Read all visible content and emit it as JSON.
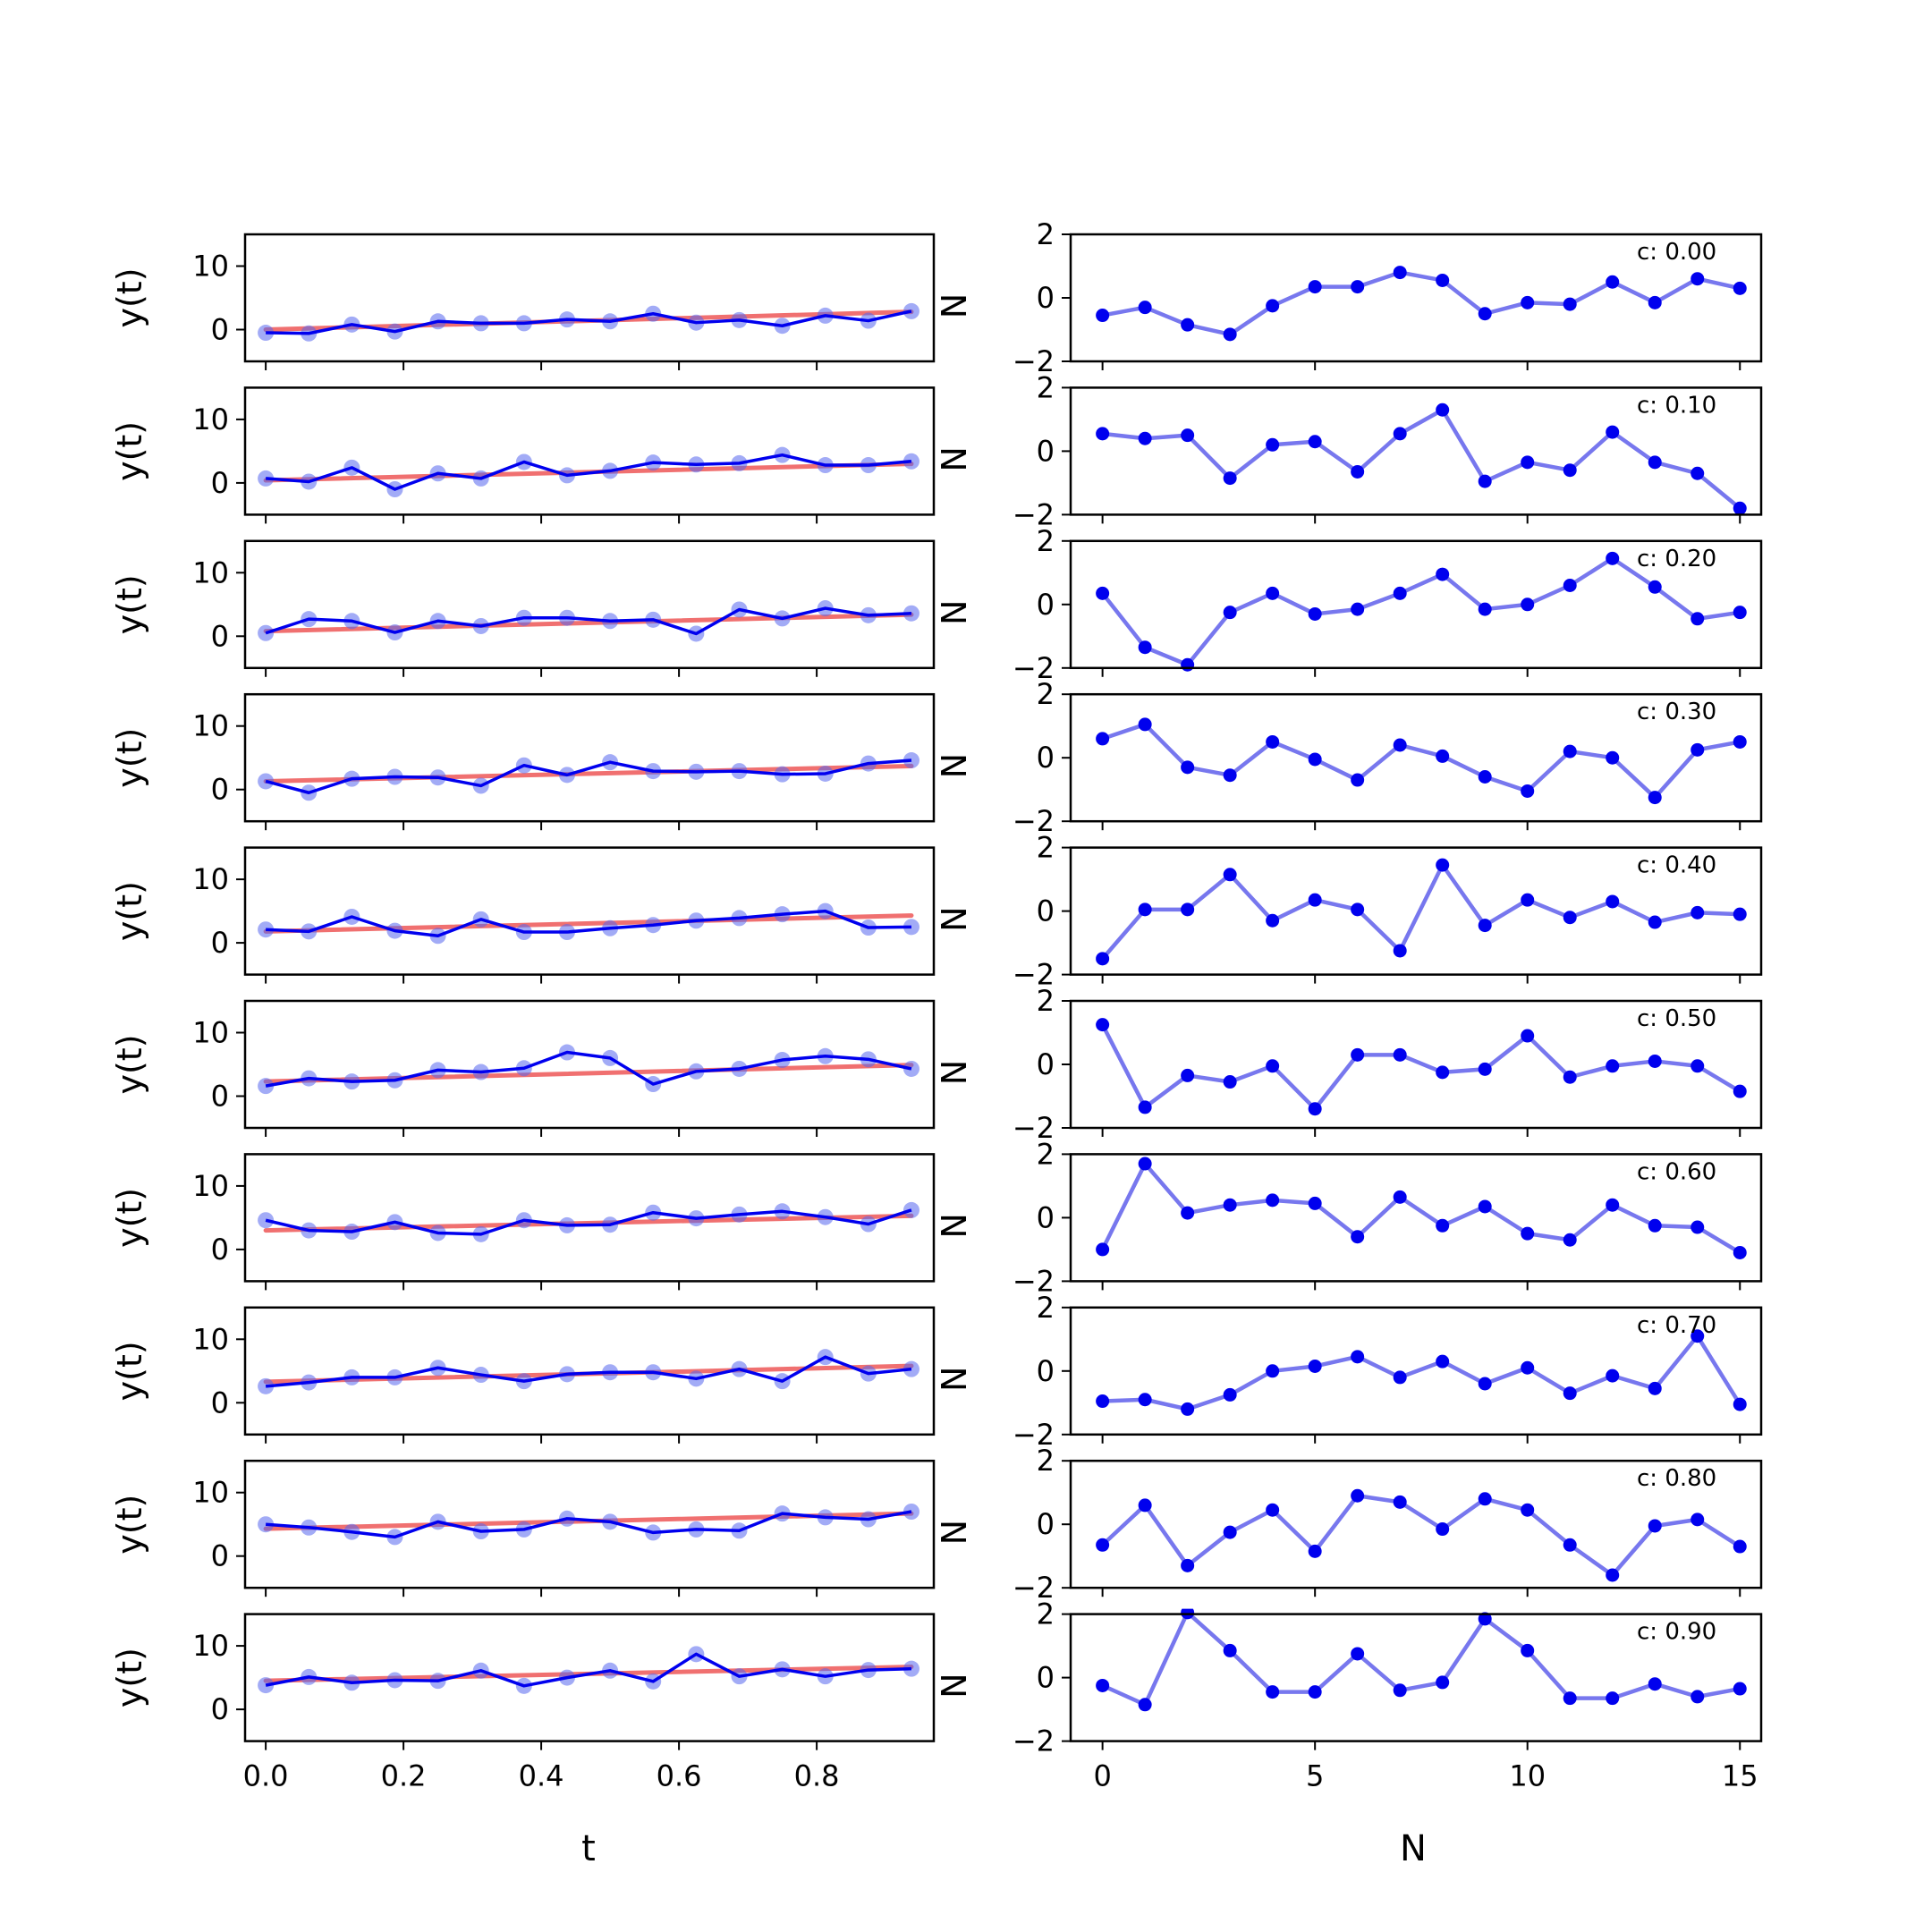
{
  "chart_data": [
    {
      "type": "line",
      "panel": "left",
      "description_axes": "10 stacked subplots sharing the x axis",
      "xlabel": "t",
      "ylabel": "y(t)",
      "xlim": [
        -0.03,
        0.97
      ],
      "ylim": [
        -5,
        15
      ],
      "xticks": [
        0.0,
        0.2,
        0.4,
        0.6,
        0.8
      ],
      "xtick_labels": [
        "0.0",
        "0.2",
        "0.4",
        "0.6",
        "0.8"
      ],
      "yticks": [
        0,
        10
      ],
      "ytick_labels": [
        "0",
        "10"
      ],
      "x": [
        0.0,
        0.0625,
        0.125,
        0.1875,
        0.25,
        0.3125,
        0.375,
        0.4375,
        0.5,
        0.5625,
        0.625,
        0.6875,
        0.75,
        0.8125,
        0.875,
        0.9375
      ],
      "colors": {
        "observed": "#0000ee",
        "markers": "#5566ee",
        "trend": "#f07070"
      },
      "subplots": [
        {
          "values": [
            -0.5,
            -0.6,
            0.8,
            -0.3,
            1.3,
            1.0,
            1.0,
            1.6,
            1.3,
            2.5,
            1.1,
            1.5,
            0.6,
            2.2,
            1.4,
            2.9
          ],
          "trend": [
            0.0,
            2.8
          ]
        },
        {
          "values": [
            0.7,
            0.2,
            2.4,
            -1.0,
            1.5,
            0.7,
            3.3,
            1.2,
            1.9,
            3.2,
            2.9,
            3.1,
            4.4,
            2.8,
            2.8,
            3.4
          ],
          "trend": [
            0.4,
            3.0
          ]
        },
        {
          "values": [
            0.5,
            2.7,
            2.4,
            0.6,
            2.4,
            1.6,
            2.9,
            2.9,
            2.4,
            2.6,
            0.4,
            4.2,
            2.8,
            4.4,
            3.3,
            3.6
          ],
          "trend": [
            0.8,
            3.4
          ]
        },
        {
          "values": [
            1.3,
            -0.5,
            1.7,
            2.0,
            1.9,
            0.6,
            3.8,
            2.3,
            4.3,
            2.9,
            2.8,
            2.9,
            2.4,
            2.5,
            4.1,
            4.6
          ],
          "trend": [
            1.3,
            3.7
          ]
        },
        {
          "values": [
            2.1,
            1.8,
            4.1,
            1.9,
            1.1,
            3.7,
            1.7,
            1.7,
            2.3,
            2.8,
            3.5,
            3.9,
            4.5,
            5.0,
            2.4,
            2.5
          ],
          "trend": [
            1.8,
            4.3
          ]
        },
        {
          "values": [
            1.6,
            2.8,
            2.3,
            2.5,
            4.1,
            3.8,
            4.4,
            6.9,
            6.0,
            1.9,
            3.9,
            4.3,
            5.7,
            6.3,
            5.8,
            4.3
          ],
          "trend": [
            2.3,
            4.9
          ]
        },
        {
          "values": [
            4.6,
            3.0,
            2.8,
            4.3,
            2.6,
            2.4,
            4.6,
            3.8,
            3.9,
            5.8,
            4.9,
            5.5,
            6.0,
            5.1,
            4.0,
            6.2
          ],
          "trend": [
            3.0,
            5.3
          ]
        },
        {
          "values": [
            2.6,
            3.2,
            4.0,
            4.0,
            5.5,
            4.4,
            3.4,
            4.5,
            4.8,
            4.8,
            3.8,
            5.3,
            3.4,
            7.2,
            4.6,
            5.3
          ],
          "trend": [
            3.3,
            5.8
          ]
        },
        {
          "values": [
            5.0,
            4.5,
            3.8,
            3.0,
            5.4,
            3.9,
            4.2,
            5.9,
            5.4,
            3.7,
            4.2,
            4.0,
            6.7,
            6.1,
            5.8,
            7.0
          ],
          "trend": [
            4.3,
            6.7
          ]
        },
        {
          "values": [
            3.8,
            5.1,
            4.2,
            4.6,
            4.5,
            6.1,
            3.7,
            5.0,
            6.1,
            4.4,
            8.7,
            5.2,
            6.3,
            5.2,
            6.2,
            6.4
          ],
          "trend": [
            4.5,
            6.7
          ]
        }
      ]
    },
    {
      "type": "line",
      "panel": "right",
      "xlabel": "N",
      "ylabel": "N",
      "xlim": [
        -0.75,
        15.5
      ],
      "ylim": [
        -2,
        2
      ],
      "xticks": [
        0,
        5,
        10,
        15
      ],
      "xtick_labels": [
        "0",
        "5",
        "10",
        "15"
      ],
      "yticks": [
        -2,
        0,
        2
      ],
      "ytick_labels": [
        "−2",
        "0",
        "2"
      ],
      "x": [
        0,
        1,
        2,
        3,
        4,
        5,
        6,
        7,
        8,
        9,
        10,
        11,
        12,
        13,
        14,
        15
      ],
      "colors": {
        "line": "#7777ee",
        "markers": "#0000ee"
      },
      "subplots": [
        {
          "label": "c: 0.00",
          "values": [
            -0.55,
            -0.3,
            -0.85,
            -1.15,
            -0.25,
            0.35,
            0.35,
            0.8,
            0.55,
            -0.5,
            -0.15,
            -0.2,
            0.5,
            -0.15,
            0.6,
            0.3
          ]
        },
        {
          "label": "c: 0.10",
          "values": [
            0.55,
            0.4,
            0.5,
            -0.85,
            0.2,
            0.3,
            -0.65,
            0.55,
            1.3,
            -0.95,
            -0.35,
            -0.6,
            0.6,
            -0.35,
            -0.7,
            -1.8
          ]
        },
        {
          "label": "c: 0.20",
          "values": [
            0.35,
            -1.35,
            -1.9,
            -0.25,
            0.35,
            -0.3,
            -0.15,
            0.35,
            0.95,
            -0.15,
            0.0,
            0.6,
            1.45,
            0.55,
            -0.45,
            -0.25
          ]
        },
        {
          "label": "c: 0.30",
          "values": [
            0.6,
            1.05,
            -0.3,
            -0.55,
            0.5,
            -0.05,
            -0.7,
            0.4,
            0.05,
            -0.6,
            -1.05,
            0.2,
            0.0,
            -1.25,
            0.25,
            0.5
          ]
        },
        {
          "label": "c: 0.40",
          "values": [
            -1.5,
            0.05,
            0.05,
            1.15,
            -0.3,
            0.35,
            0.05,
            -1.25,
            1.45,
            -0.45,
            0.35,
            -0.2,
            0.3,
            -0.35,
            -0.05,
            -0.1
          ]
        },
        {
          "label": "c: 0.50",
          "values": [
            1.25,
            -1.35,
            -0.35,
            -0.55,
            -0.05,
            -1.4,
            0.3,
            0.3,
            -0.25,
            -0.15,
            0.9,
            -0.4,
            -0.05,
            0.1,
            -0.05,
            -0.85
          ]
        },
        {
          "label": "c: 0.60",
          "values": [
            -1.0,
            1.7,
            0.15,
            0.4,
            0.55,
            0.45,
            -0.6,
            0.65,
            -0.25,
            0.35,
            -0.5,
            -0.7,
            0.4,
            -0.25,
            -0.3,
            -1.1
          ]
        },
        {
          "label": "c: 0.70",
          "values": [
            -0.95,
            -0.9,
            -1.2,
            -0.75,
            0.0,
            0.15,
            0.45,
            -0.2,
            0.3,
            -0.4,
            0.1,
            -0.7,
            -0.15,
            -0.55,
            1.1,
            -1.05
          ]
        },
        {
          "label": "c: 0.80",
          "values": [
            -0.65,
            0.6,
            -1.3,
            -0.25,
            0.45,
            -0.85,
            0.9,
            0.7,
            -0.15,
            0.8,
            0.45,
            -0.65,
            -1.6,
            -0.05,
            0.15,
            -0.7
          ]
        },
        {
          "label": "c: 0.90",
          "values": [
            -0.25,
            -0.85,
            2.05,
            0.85,
            -0.45,
            -0.45,
            0.75,
            -0.4,
            -0.15,
            1.85,
            0.85,
            -0.65,
            -0.65,
            -0.2,
            -0.6,
            -0.35
          ]
        }
      ]
    }
  ]
}
